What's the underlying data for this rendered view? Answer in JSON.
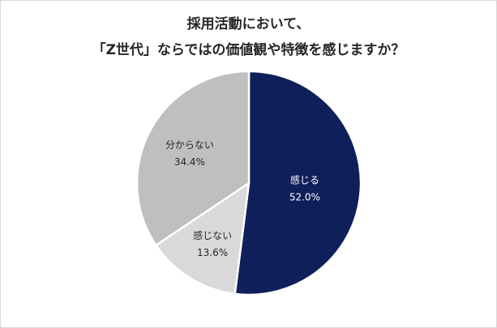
{
  "chart_data": {
    "type": "pie",
    "title": [
      "採用活動において、",
      "「Z世代」ならではの価値観や特徴を感じますか？"
    ],
    "slices": [
      {
        "label": "感じる",
        "value": 52.0,
        "value_text": "52.0%",
        "color": "#0f1f5a",
        "text_color": "#ffffff"
      },
      {
        "label": "感じない",
        "value": 13.6,
        "value_text": "13.6%",
        "color": "#d9d9d9",
        "text_color": "#262626"
      },
      {
        "label": "分からない",
        "value": 34.4,
        "value_text": "34.4%",
        "color": "#bfbfbf",
        "text_color": "#262626"
      }
    ],
    "start": "12 o'clock",
    "direction": "clockwise"
  }
}
